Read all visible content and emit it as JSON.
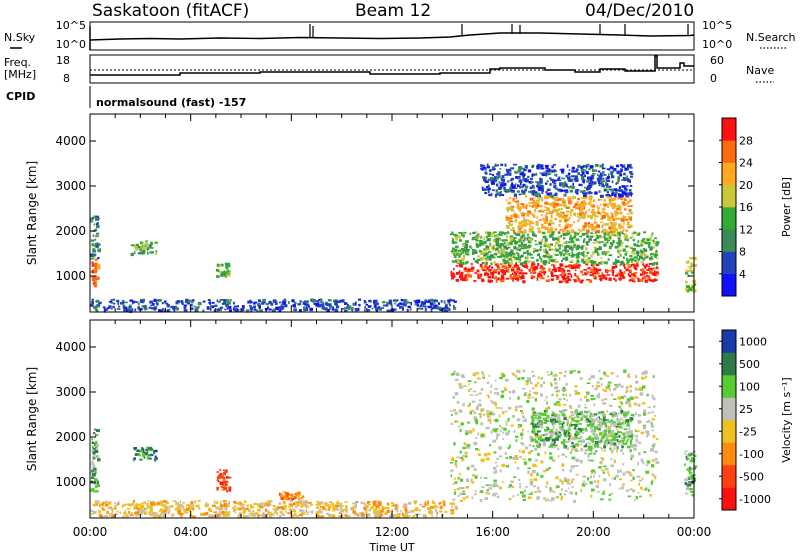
{
  "header": {
    "station": "Saskatoon (fitACF)",
    "beam": "Beam 12",
    "date": "04/Dec/2010"
  },
  "top_panel": {
    "left_label": "N.Sky",
    "right_label": "N.Search",
    "left_ticks": [
      "10^5",
      "10^0"
    ],
    "right_ticks": [
      "10^5",
      "10^0"
    ]
  },
  "freq_panel": {
    "left_label_1": "Freq.",
    "left_label_2": "[MHz]",
    "right_label": "Nave",
    "left_ticks": [
      "18",
      "8"
    ],
    "right_ticks": [
      "60",
      "0"
    ]
  },
  "cpid": {
    "label": "CPID",
    "text": "normalsound (fast) -157"
  },
  "x_axis": {
    "label": "Time UT",
    "ticks": [
      "00:00",
      "04:00",
      "08:00",
      "12:00",
      "16:00",
      "20:00",
      "00:00"
    ]
  },
  "chart_data": [
    {
      "type": "heatmap",
      "name": "power",
      "ylabel": "Slant Range [km]",
      "ylim": [
        200,
        4600
      ],
      "yticks": [
        "1000",
        "2000",
        "3000",
        "4000"
      ],
      "x_range_hours": [
        0,
        24
      ],
      "colorbar": {
        "label": "Power [dB]",
        "ticks": [
          "4",
          "8",
          "12",
          "16",
          "20",
          "24",
          "28"
        ],
        "colors": [
          "#1010ff",
          "#2244bb",
          "#3a8a5a",
          "#33aa33",
          "#c8c83a",
          "#ffaa22",
          "#ff6a10",
          "#ff1010"
        ]
      },
      "regions": [
        {
          "t0": 0.0,
          "t1": 0.3,
          "r0": 800,
          "r1": 1400,
          "level": 6
        },
        {
          "t0": 0.0,
          "t1": 0.3,
          "r0": 1400,
          "r1": 2400,
          "level": 2
        },
        {
          "t0": 1.6,
          "t1": 2.6,
          "r0": 1500,
          "r1": 1800,
          "level": 3
        },
        {
          "t0": 5.0,
          "t1": 5.5,
          "r0": 1000,
          "r1": 1300,
          "level": 3
        },
        {
          "t0": 0.0,
          "t1": 14.5,
          "r0": 250,
          "r1": 500,
          "level": 1
        },
        {
          "t0": 14.3,
          "t1": 22.5,
          "r0": 900,
          "r1": 1300,
          "level": 7
        },
        {
          "t0": 14.3,
          "t1": 22.5,
          "r0": 1300,
          "r1": 2000,
          "level": 3
        },
        {
          "t0": 16.5,
          "t1": 21.5,
          "r0": 2000,
          "r1": 2800,
          "level": 5
        },
        {
          "t0": 15.5,
          "t1": 21.5,
          "r0": 2800,
          "r1": 3500,
          "level": 1
        },
        {
          "t0": 23.6,
          "t1": 24.0,
          "r0": 700,
          "r1": 1500,
          "level": 4
        }
      ]
    },
    {
      "type": "heatmap",
      "name": "velocity",
      "ylabel": "Slant Range [km]",
      "ylim": [
        200,
        4600
      ],
      "yticks": [
        "1000",
        "2000",
        "3000",
        "4000"
      ],
      "x_range_hours": [
        0,
        24
      ],
      "colorbar": {
        "label": "Velocity [m s⁻¹]",
        "ticks": [
          "1000",
          "500",
          "100",
          "25",
          "-25",
          "-100",
          "-500",
          "-1000"
        ],
        "colors": [
          "#1a3aaa",
          "#2f7a4a",
          "#55cc33",
          "#c0c0b8",
          "#f0c020",
          "#ff8a10",
          "#ff4010",
          "#ff1010"
        ]
      },
      "regions": [
        {
          "t0": 0.0,
          "t1": 0.3,
          "r0": 800,
          "r1": 2200,
          "level": 2
        },
        {
          "t0": 1.6,
          "t1": 2.6,
          "r0": 1500,
          "r1": 1800,
          "level": 1
        },
        {
          "t0": 5.0,
          "t1": 5.5,
          "r0": 800,
          "r1": 1300,
          "level": 6
        },
        {
          "t0": 7.5,
          "t1": 8.5,
          "r0": 650,
          "r1": 800,
          "level": 5
        },
        {
          "t0": 0.0,
          "t1": 14.5,
          "r0": 250,
          "r1": 600,
          "level": 4
        },
        {
          "t0": 14.3,
          "t1": 22.5,
          "r0": 600,
          "r1": 3500,
          "level": 3
        },
        {
          "t0": 17.5,
          "t1": 21.5,
          "r0": 1800,
          "r1": 2600,
          "level": 2
        },
        {
          "t0": 23.6,
          "t1": 24.0,
          "r0": 700,
          "r1": 1800,
          "level": 2
        }
      ]
    }
  ]
}
